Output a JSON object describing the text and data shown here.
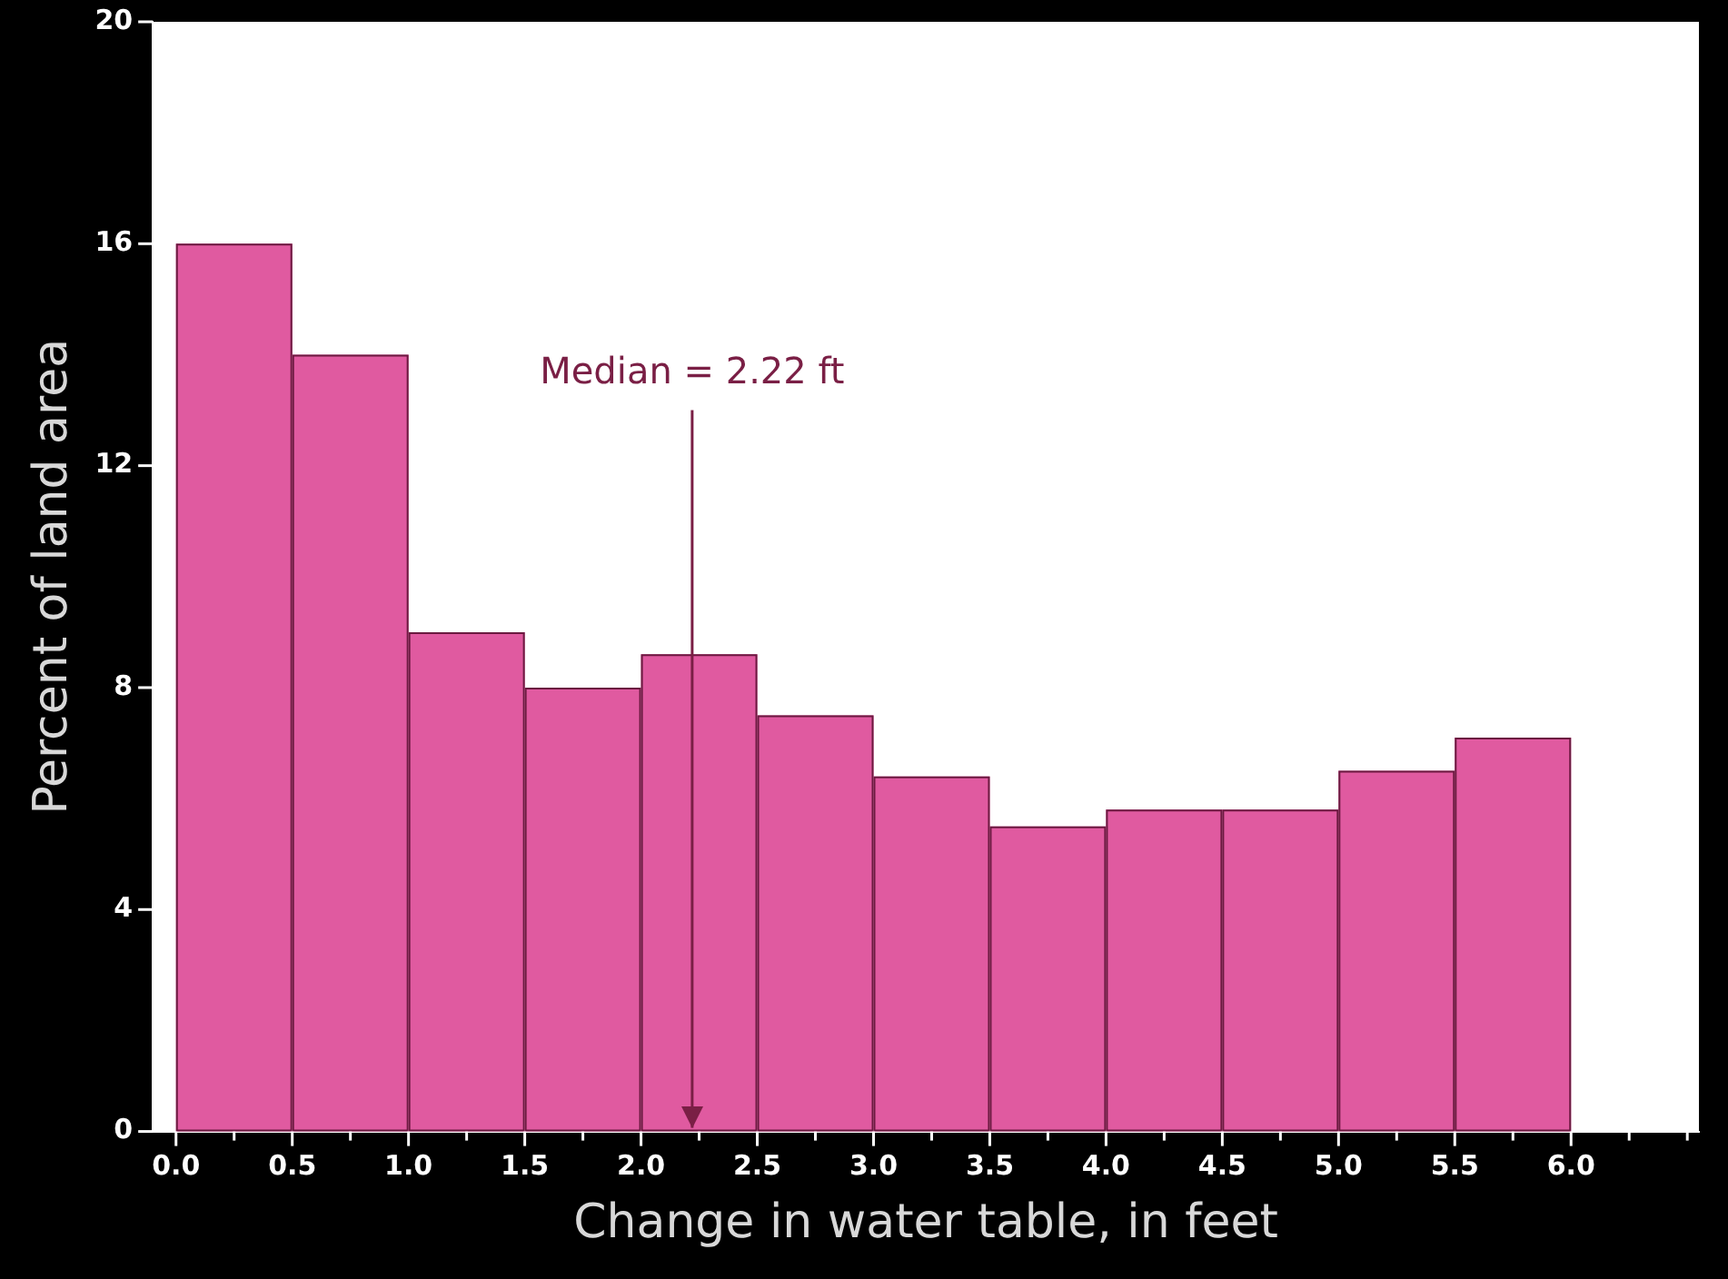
{
  "chart_data": {
    "type": "histogram",
    "xlabel": "Change in water table, in feet",
    "ylabel": "Percent of land area",
    "bins": [
      0,
      0.5,
      1,
      1.5,
      2,
      2.5,
      3,
      3.5,
      4,
      4.5,
      5,
      5.5,
      6
    ],
    "values": [
      16,
      14,
      9,
      8,
      8.6,
      7.5,
      6.4,
      5.5,
      5.8,
      5.8,
      6.5,
      7.1
    ],
    "color": "#e05aa0",
    "xlim": [
      -0.1,
      6.55
    ],
    "xticks": [
      {
        "value": 0,
        "label": "0.0"
      },
      {
        "value": 0.25,
        "label": null
      },
      0.5,
      {
        "value": 0.75,
        "label": null
      },
      {
        "value": 1,
        "label": "1.0"
      },
      {
        "value": 1.25,
        "label": null
      },
      1.5,
      {
        "value": 1.75,
        "label": null
      },
      {
        "value": 2,
        "label": "2.0"
      },
      {
        "value": 2.25,
        "label": null
      },
      2.5,
      {
        "value": 2.75,
        "label": null
      },
      {
        "value": 3,
        "label": "3.0"
      },
      {
        "value": 3.25,
        "label": null
      },
      3.5,
      {
        "value": 3.75,
        "label": null
      },
      {
        "value": 4,
        "label": "4.0"
      },
      {
        "value": 4.25,
        "label": null
      },
      4.5,
      {
        "value": 4.75,
        "label": null
      },
      {
        "value": 5,
        "label": "5.0"
      },
      {
        "value": 5.25,
        "label": null
      },
      5.5,
      {
        "value": 5.75,
        "label": null
      },
      {
        "value": 6,
        "label": "6.0"
      },
      {
        "value": 6.25,
        "label": null
      },
      {
        "value": 6.5,
        "label": null
      }
    ],
    "ylim": [
      0,
      20
    ],
    "yticks": [
      0,
      4,
      8,
      12,
      16,
      20
    ],
    "grid": false,
    "ref_lines": [
      {
        "axis": "x",
        "value": 2.22,
        "label": "Median = 2.22 ft",
        "color": "#7a1f45"
      }
    ]
  }
}
